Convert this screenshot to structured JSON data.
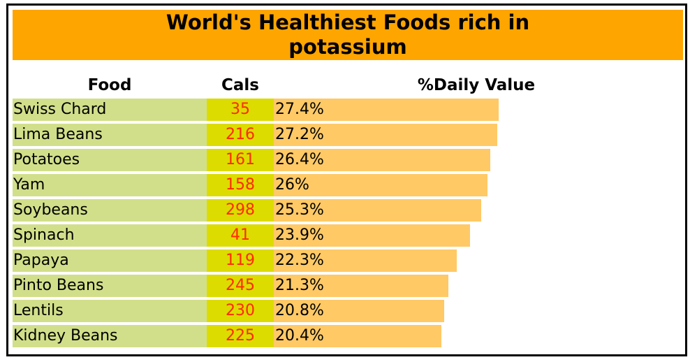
{
  "chart_data": {
    "type": "bar",
    "title": "World's Healthiest Foods rich in\npotassium",
    "columns": {
      "food": "Food",
      "cals": "Cals",
      "dv": "%Daily Value"
    },
    "rows": [
      {
        "food": "Swiss Chard",
        "cals": "35",
        "dv": 27.4,
        "dv_label": "27.4%"
      },
      {
        "food": "Lima Beans",
        "cals": "216",
        "dv": 27.2,
        "dv_label": "27.2%"
      },
      {
        "food": "Potatoes",
        "cals": "161",
        "dv": 26.4,
        "dv_label": "26.4%"
      },
      {
        "food": "Yam",
        "cals": "158",
        "dv": 26,
        "dv_label": "26%"
      },
      {
        "food": "Soybeans",
        "cals": "298",
        "dv": 25.3,
        "dv_label": "25.3%"
      },
      {
        "food": "Spinach",
        "cals": "41",
        "dv": 23.9,
        "dv_label": "23.9%"
      },
      {
        "food": "Papaya",
        "cals": "119",
        "dv": 22.3,
        "dv_label": "22.3%"
      },
      {
        "food": "Pinto Beans",
        "cals": "245",
        "dv": 21.3,
        "dv_label": "21.3%"
      },
      {
        "food": "Lentils",
        "cals": "230",
        "dv": 20.8,
        "dv_label": "20.8%"
      },
      {
        "food": "Kidney Beans",
        "cals": "225",
        "dv": 20.4,
        "dv_label": "20.4%"
      }
    ],
    "colors": {
      "title_bg": "#FFA500",
      "food_bg": "#D2DF8A",
      "cals_bg": "#DCDC00",
      "cals_text": "#FF2A00",
      "dv_bar": "#FFC966"
    }
  }
}
